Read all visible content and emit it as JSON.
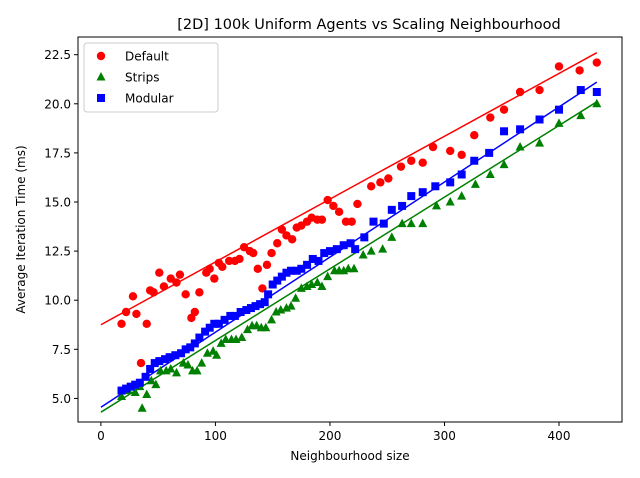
{
  "chart_data": {
    "type": "scatter",
    "title": "[2D] 100k Uniform Agents vs Scaling Neighbourhood",
    "xlabel": "Neighbourhood size",
    "ylabel": "Average Iteration Time (ms)",
    "xlim": [
      -20,
      455
    ],
    "ylim": [
      3.8,
      23.4
    ],
    "xticks": [
      0,
      100,
      200,
      300,
      400
    ],
    "yticks": [
      5.0,
      7.5,
      10.0,
      12.5,
      15.0,
      17.5,
      20.0,
      22.5
    ],
    "grid": false,
    "legend_position": "top-left",
    "series": [
      {
        "name": "Default",
        "color": "#ff0000",
        "marker": "circle",
        "fit": [
          [
            0,
            8.75
          ],
          [
            433,
            22.6
          ]
        ],
        "points": [
          [
            18,
            8.8
          ],
          [
            22,
            9.4
          ],
          [
            28,
            10.2
          ],
          [
            31,
            9.3
          ],
          [
            35,
            6.8
          ],
          [
            40,
            8.8
          ],
          [
            43,
            10.5
          ],
          [
            46,
            10.4
          ],
          [
            51,
            11.4
          ],
          [
            55,
            10.7
          ],
          [
            61,
            11.1
          ],
          [
            66,
            10.9
          ],
          [
            69,
            11.3
          ],
          [
            74,
            10.3
          ],
          [
            79,
            9.1
          ],
          [
            82,
            9.4
          ],
          [
            86,
            10.4
          ],
          [
            92,
            11.4
          ],
          [
            95,
            11.6
          ],
          [
            99,
            11.1
          ],
          [
            103,
            11.9
          ],
          [
            106,
            11.7
          ],
          [
            112,
            12.0
          ],
          [
            117,
            12.0
          ],
          [
            121,
            12.1
          ],
          [
            125,
            12.7
          ],
          [
            130,
            12.5
          ],
          [
            133,
            12.4
          ],
          [
            137,
            11.6
          ],
          [
            141,
            10.6
          ],
          [
            145,
            11.8
          ],
          [
            149,
            12.4
          ],
          [
            154,
            12.9
          ],
          [
            158,
            13.6
          ],
          [
            162,
            13.3
          ],
          [
            167,
            13.1
          ],
          [
            171,
            13.7
          ],
          [
            175,
            13.8
          ],
          [
            180,
            14.0
          ],
          [
            184,
            14.2
          ],
          [
            189,
            14.1
          ],
          [
            193,
            14.1
          ],
          [
            198,
            15.1
          ],
          [
            203,
            14.8
          ],
          [
            208,
            14.5
          ],
          [
            214,
            14.0
          ],
          [
            219,
            14.0
          ],
          [
            224,
            14.9
          ],
          [
            236,
            15.8
          ],
          [
            244,
            16.0
          ],
          [
            251,
            16.2
          ],
          [
            262,
            16.8
          ],
          [
            271,
            17.1
          ],
          [
            281,
            17.0
          ],
          [
            290,
            17.8
          ],
          [
            305,
            17.6
          ],
          [
            315,
            17.4
          ],
          [
            326,
            18.4
          ],
          [
            340,
            19.3
          ],
          [
            352,
            19.7
          ],
          [
            366,
            20.6
          ],
          [
            383,
            20.7
          ],
          [
            400,
            21.9
          ],
          [
            418,
            21.7
          ],
          [
            433,
            22.1
          ]
        ]
      },
      {
        "name": "Strips",
        "color": "#008000",
        "marker": "triangle",
        "fit": [
          [
            0,
            4.3
          ],
          [
            433,
            20.1
          ]
        ],
        "points": [
          [
            18,
            5.1
          ],
          [
            24,
            5.4
          ],
          [
            30,
            5.3
          ],
          [
            34,
            5.6
          ],
          [
            36,
            4.5
          ],
          [
            40,
            5.2
          ],
          [
            44,
            5.9
          ],
          [
            48,
            5.7
          ],
          [
            52,
            6.4
          ],
          [
            57,
            6.4
          ],
          [
            61,
            6.5
          ],
          [
            66,
            6.3
          ],
          [
            72,
            6.8
          ],
          [
            76,
            6.7
          ],
          [
            80,
            6.4
          ],
          [
            84,
            6.4
          ],
          [
            88,
            6.8
          ],
          [
            93,
            7.3
          ],
          [
            98,
            7.4
          ],
          [
            101,
            7.2
          ],
          [
            105,
            7.8
          ],
          [
            109,
            8.0
          ],
          [
            114,
            8.0
          ],
          [
            118,
            8.0
          ],
          [
            123,
            8.1
          ],
          [
            128,
            8.5
          ],
          [
            132,
            8.7
          ],
          [
            136,
            8.7
          ],
          [
            140,
            8.6
          ],
          [
            144,
            8.6
          ],
          [
            149,
            9.0
          ],
          [
            153,
            9.4
          ],
          [
            157,
            9.5
          ],
          [
            162,
            9.6
          ],
          [
            166,
            9.7
          ],
          [
            170,
            10.1
          ],
          [
            175,
            10.6
          ],
          [
            180,
            10.7
          ],
          [
            184,
            10.8
          ],
          [
            189,
            10.9
          ],
          [
            193,
            10.7
          ],
          [
            198,
            11.2
          ],
          [
            204,
            11.5
          ],
          [
            208,
            11.5
          ],
          [
            212,
            11.5
          ],
          [
            216,
            11.6
          ],
          [
            221,
            11.6
          ],
          [
            229,
            12.3
          ],
          [
            236,
            12.5
          ],
          [
            246,
            12.6
          ],
          [
            254,
            13.2
          ],
          [
            263,
            13.9
          ],
          [
            271,
            13.9
          ],
          [
            281,
            13.9
          ],
          [
            293,
            14.8
          ],
          [
            305,
            15.0
          ],
          [
            315,
            15.3
          ],
          [
            327,
            15.9
          ],
          [
            340,
            16.4
          ],
          [
            352,
            16.9
          ],
          [
            366,
            17.8
          ],
          [
            383,
            18.0
          ],
          [
            400,
            19.0
          ],
          [
            419,
            19.4
          ],
          [
            433,
            20.0
          ]
        ]
      },
      {
        "name": "Modular",
        "color": "#0000ff",
        "marker": "square",
        "fit": [
          [
            0,
            4.55
          ],
          [
            433,
            21.1
          ]
        ],
        "points": [
          [
            18,
            5.4
          ],
          [
            22,
            5.5
          ],
          [
            26,
            5.6
          ],
          [
            30,
            5.7
          ],
          [
            34,
            5.8
          ],
          [
            39,
            6.1
          ],
          [
            43,
            6.5
          ],
          [
            47,
            6.8
          ],
          [
            51,
            6.9
          ],
          [
            56,
            7.0
          ],
          [
            60,
            7.1
          ],
          [
            65,
            7.2
          ],
          [
            70,
            7.3
          ],
          [
            74,
            7.5
          ],
          [
            78,
            7.6
          ],
          [
            82,
            7.8
          ],
          [
            86,
            8.1
          ],
          [
            91,
            8.4
          ],
          [
            95,
            8.6
          ],
          [
            99,
            8.8
          ],
          [
            103,
            8.8
          ],
          [
            108,
            9.0
          ],
          [
            113,
            9.2
          ],
          [
            117,
            9.2
          ],
          [
            122,
            9.4
          ],
          [
            127,
            9.5
          ],
          [
            131,
            9.6
          ],
          [
            135,
            9.7
          ],
          [
            139,
            9.8
          ],
          [
            143,
            9.9
          ],
          [
            146,
            10.3
          ],
          [
            150,
            10.8
          ],
          [
            154,
            11.0
          ],
          [
            158,
            11.2
          ],
          [
            162,
            11.4
          ],
          [
            166,
            11.5
          ],
          [
            171,
            11.5
          ],
          [
            175,
            11.6
          ],
          [
            180,
            11.8
          ],
          [
            185,
            12.1
          ],
          [
            190,
            12.0
          ],
          [
            195,
            12.4
          ],
          [
            200,
            12.5
          ],
          [
            206,
            12.6
          ],
          [
            212,
            12.8
          ],
          [
            218,
            12.9
          ],
          [
            222,
            12.6
          ],
          [
            230,
            13.2
          ],
          [
            238,
            14.0
          ],
          [
            247,
            13.9
          ],
          [
            254,
            14.6
          ],
          [
            263,
            14.8
          ],
          [
            271,
            15.3
          ],
          [
            281,
            15.5
          ],
          [
            292,
            15.8
          ],
          [
            305,
            16.0
          ],
          [
            315,
            16.4
          ],
          [
            326,
            17.1
          ],
          [
            339,
            17.5
          ],
          [
            352,
            18.6
          ],
          [
            366,
            18.7
          ],
          [
            383,
            19.2
          ],
          [
            400,
            19.7
          ],
          [
            419,
            20.7
          ],
          [
            433,
            20.6
          ]
        ]
      }
    ]
  }
}
